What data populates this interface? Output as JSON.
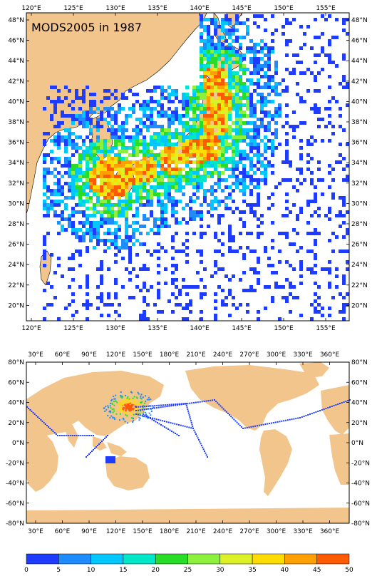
{
  "top_map": {
    "title": "MODS2005 in 1987",
    "lon_labels": [
      "120°E",
      "125°E",
      "130°E",
      "135°E",
      "140°E",
      "145°E",
      "150°E",
      "155°E"
    ],
    "lat_labels": [
      "48°N",
      "46°N",
      "44°N",
      "42°N",
      "40°N",
      "38°N",
      "36°N",
      "34°N",
      "32°N",
      "30°N",
      "28°N",
      "26°N",
      "24°N",
      "22°N",
      "20°N"
    ]
  },
  "bottom_map": {
    "lon_labels": [
      "30°E",
      "60°E",
      "90°E",
      "120°E",
      "150°E",
      "180°E",
      "210°E",
      "240°E",
      "270°E",
      "300°E",
      "330°E",
      "360°E"
    ],
    "lat_labels": [
      "80°N",
      "60°N",
      "40°N",
      "20°N",
      "0°N",
      "-20°N",
      "-40°N",
      "-60°N",
      "-80°N"
    ]
  },
  "colorbar": {
    "labels": [
      "0",
      "5",
      "10",
      "15",
      "20",
      "25",
      "30",
      "35",
      "40",
      "45",
      "50"
    ],
    "colors": [
      "#1e3cff",
      "#1e8cff",
      "#00c8ff",
      "#00e6c8",
      "#28dc28",
      "#8cf03c",
      "#dcf028",
      "#ffdc00",
      "#ffa000",
      "#ff5a00"
    ]
  },
  "colors": {
    "land": "#f2c58c",
    "water": "#ffffff"
  }
}
